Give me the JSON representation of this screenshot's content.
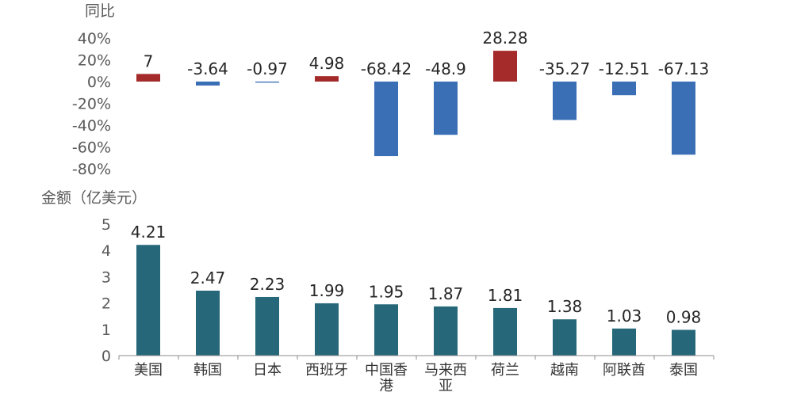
{
  "chart_data": [
    {
      "type": "bar",
      "ylabel": "同比",
      "categories": [
        "美国",
        "韩国",
        "日本",
        "西班牙",
        "中国香港",
        "马来西亚",
        "荷兰",
        "越南",
        "阿联酋",
        "泰国"
      ],
      "values": [
        7,
        -3.64,
        -0.97,
        4.98,
        -68.42,
        -48.9,
        28.28,
        -35.27,
        -12.51,
        -67.13
      ],
      "value_labels": [
        "7",
        "-3.64",
        "-0.97",
        "4.98",
        "-68.42",
        "-48.9",
        "28.28",
        "-35.27",
        "-12.51",
        "-67.13"
      ],
      "ylim": [
        -80,
        40
      ],
      "yticks": [
        40,
        20,
        0,
        -20,
        -40,
        -60,
        -80
      ],
      "ytick_labels": [
        "40%",
        "20%",
        "0%",
        "-20%",
        "-40%",
        "-60%",
        "-80%"
      ],
      "colors": {
        "positive": "#A52A2A",
        "negative": "#3A6EB5"
      },
      "grid": false
    },
    {
      "type": "bar",
      "ylabel": "金额（亿美元）",
      "categories": [
        "美国",
        "韩国",
        "日本",
        "西班牙",
        "中国香港",
        "马来西亚",
        "荷兰",
        "越南",
        "阿联酋",
        "泰国"
      ],
      "category_lines": [
        [
          "美国"
        ],
        [
          "韩国"
        ],
        [
          "日本"
        ],
        [
          "西班牙"
        ],
        [
          "中国香",
          "港"
        ],
        [
          "马来西",
          "亚"
        ],
        [
          "荷兰"
        ],
        [
          "越南"
        ],
        [
          "阿联酋"
        ],
        [
          "泰国"
        ]
      ],
      "values": [
        4.21,
        2.47,
        2.23,
        1.99,
        1.95,
        1.87,
        1.81,
        1.38,
        1.03,
        0.98
      ],
      "value_labels": [
        "4.21",
        "2.47",
        "2.23",
        "1.99",
        "1.95",
        "1.87",
        "1.81",
        "1.38",
        "1.03",
        "0.98"
      ],
      "ylim": [
        0,
        5
      ],
      "yticks": [
        5,
        4,
        3,
        2,
        1,
        0
      ],
      "ytick_labels": [
        "5",
        "4",
        "3",
        "2",
        "1",
        "0"
      ],
      "colors": {
        "bar": "#26687A",
        "axis": "#8C8C8C"
      },
      "grid": false
    }
  ]
}
